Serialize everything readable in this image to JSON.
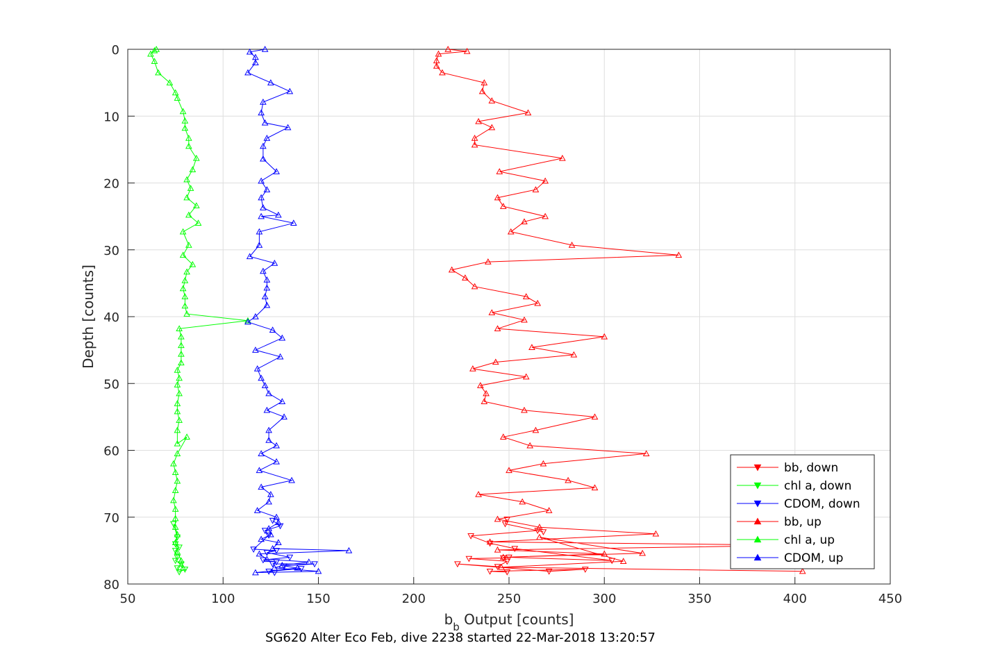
{
  "chart_data": {
    "type": "scatter",
    "title": "",
    "xlabel_main": "b",
    "xlabel_sub": "b",
    "xlabel_rest": " Output [counts]",
    "ylabel": "Depth [counts]",
    "caption": "SG620 Alter Eco Feb, dive 2238 started 22-Mar-2018 13:20:57",
    "xlim": [
      50,
      450
    ],
    "ylim": [
      0,
      80
    ],
    "y_reversed": true,
    "grid": true,
    "legend_position": "bottom-right",
    "xticks": [
      "50",
      "100",
      "150",
      "200",
      "250",
      "300",
      "350",
      "400",
      "450"
    ],
    "yticks": [
      "0",
      "10",
      "20",
      "30",
      "40",
      "50",
      "60",
      "70",
      "80"
    ],
    "series": [
      {
        "name": "bb, down",
        "color": "#ff0000",
        "marker": "triangle-down",
        "x": [
          249,
          248,
          268,
          265,
          230,
          240,
          253,
          304,
          250,
          247,
          229,
          249,
          244,
          223,
          271,
          290,
          240,
          249
        ],
        "y": [
          70.3,
          71.0,
          72.2,
          72.0,
          72.8,
          73.9,
          74.7,
          76.5,
          76.0,
          76.1,
          76.2,
          76.6,
          77.4,
          77.0,
          78.1,
          77.8,
          78.1,
          78.2
        ]
      },
      {
        "name": "chl a, down",
        "color": "#00ff00",
        "marker": "triangle-down",
        "x": [
          74,
          76,
          75,
          77,
          75,
          76,
          75,
          78,
          76,
          77,
          80
        ],
        "y": [
          71.0,
          73.0,
          74.0,
          74.5,
          75.0,
          76.0,
          76.5,
          77.0,
          77.6,
          78.2,
          77.8
        ]
      },
      {
        "name": "CDOM, down",
        "color": "#0000ff",
        "marker": "triangle-down",
        "x": [
          126,
          130,
          122,
          124,
          116,
          128,
          123,
          135,
          121,
          128,
          126,
          148,
          132,
          141,
          124,
          127
        ],
        "y": [
          70.5,
          71.3,
          72.0,
          72.7,
          74.8,
          75.0,
          75.3,
          76.0,
          76.4,
          76.7,
          77.0,
          77.0,
          77.3,
          77.7,
          78.1,
          78.3
        ]
      },
      {
        "name": "bb, up",
        "color": "#ff0000",
        "marker": "triangle-up",
        "x": [
          218,
          228,
          213,
          212,
          212,
          215,
          237,
          236,
          241,
          260,
          234,
          241,
          232,
          232,
          278,
          245,
          269,
          264,
          244,
          247,
          269,
          258,
          251,
          283,
          339,
          239,
          220,
          227,
          232,
          259,
          265,
          241,
          258,
          244,
          300,
          262,
          284,
          243,
          231,
          259,
          235,
          238,
          237,
          258,
          295,
          264,
          247,
          261,
          322,
          268,
          250,
          281,
          295,
          234,
          257,
          271,
          244,
          266,
          327,
          240,
          404,
          244,
          300,
          247,
          320,
          266,
          310,
          246,
          404
        ],
        "y": [
          0.0,
          0.3,
          0.7,
          1.7,
          2.5,
          3.5,
          5.0,
          6.3,
          7.7,
          9.5,
          10.8,
          11.7,
          13.3,
          14.3,
          16.3,
          18.3,
          19.7,
          21.0,
          22.2,
          23.5,
          25.0,
          25.8,
          27.3,
          29.3,
          30.8,
          31.8,
          33.0,
          34.2,
          35.5,
          37.0,
          38.0,
          39.4,
          40.5,
          41.8,
          43.0,
          44.6,
          45.7,
          46.8,
          47.8,
          49.0,
          50.3,
          51.5,
          52.7,
          54.0,
          55.0,
          57.0,
          58.0,
          59.3,
          60.5,
          62.0,
          63.0,
          64.5,
          65.6,
          66.6,
          67.7,
          69.0,
          70.3,
          71.5,
          72.5,
          73.7,
          74.2,
          74.9,
          75.5,
          76.0,
          75.4,
          73.0,
          76.6,
          77.5,
          78.1
        ]
      },
      {
        "name": "chl a, up",
        "color": "#00ff00",
        "marker": "triangle-up",
        "x": [
          65,
          64,
          62,
          64,
          66,
          72,
          75,
          76,
          79,
          80,
          80,
          82,
          82,
          86,
          84,
          81,
          83,
          81,
          86,
          82,
          87,
          79,
          82,
          79,
          84,
          81,
          80,
          79,
          80,
          80,
          81,
          113,
          77,
          78,
          78,
          78,
          78,
          76,
          77,
          76,
          77,
          76,
          76,
          77,
          76,
          76,
          81,
          76,
          74,
          75,
          76,
          75,
          74,
          75,
          75,
          75,
          76,
          75,
          76,
          78,
          79
        ],
        "y": [
          0.0,
          0.2,
          0.7,
          1.8,
          3.5,
          5.0,
          6.5,
          7.3,
          9.3,
          10.7,
          11.8,
          13.3,
          14.5,
          16.3,
          18.0,
          19.5,
          20.8,
          22.2,
          23.4,
          24.8,
          26.0,
          27.3,
          29.3,
          30.8,
          32.2,
          33.3,
          34.6,
          35.8,
          37.0,
          38.4,
          39.6,
          40.6,
          41.8,
          43.0,
          44.3,
          45.6,
          46.9,
          48.0,
          49.2,
          50.2,
          51.5,
          53.0,
          54.2,
          55.5,
          57.0,
          59.0,
          58.0,
          60.5,
          62.0,
          63.3,
          64.6,
          66.0,
          67.5,
          68.8,
          70.2,
          71.5,
          72.6,
          73.8,
          75.2,
          76.5,
          77.6
        ]
      },
      {
        "name": "CDOM, up",
        "color": "#0000ff",
        "marker": "triangle-up",
        "x": [
          122,
          114,
          117,
          117,
          113,
          125,
          135,
          121,
          120,
          122,
          134,
          123,
          121,
          121,
          128,
          120,
          123,
          120,
          121,
          129,
          120,
          137,
          119,
          119,
          114,
          127,
          121,
          123,
          123,
          122,
          123,
          117,
          113,
          126,
          131,
          117,
          130,
          118,
          120,
          122,
          124,
          131,
          123,
          132,
          124,
          124,
          128,
          120,
          128,
          119,
          136,
          120,
          125,
          124,
          118,
          128,
          129,
          124,
          125,
          120,
          129,
          126,
          166,
          119,
          123,
          145,
          131,
          127,
          150,
          117,
          139
        ],
        "y": [
          0.0,
          0.4,
          1.2,
          2.0,
          3.5,
          5.0,
          6.3,
          7.9,
          9.5,
          11.0,
          11.7,
          13.3,
          14.5,
          16.4,
          18.3,
          19.7,
          21.0,
          22.2,
          23.7,
          24.8,
          25.0,
          26.0,
          27.3,
          29.3,
          31.0,
          32.0,
          33.2,
          34.5,
          35.7,
          37.0,
          38.3,
          40.0,
          40.8,
          42.0,
          43.2,
          45.0,
          46.0,
          47.8,
          49.2,
          50.3,
          51.5,
          52.7,
          54.0,
          55.0,
          57.0,
          58.5,
          59.3,
          60.5,
          61.7,
          63.0,
          64.5,
          65.5,
          66.6,
          67.7,
          69.0,
          70.0,
          70.8,
          71.7,
          72.6,
          73.3,
          73.8,
          74.7,
          75.0,
          75.5,
          76.3,
          76.7,
          77.2,
          77.6,
          78.1,
          78.3,
          77.6
        ]
      }
    ]
  }
}
